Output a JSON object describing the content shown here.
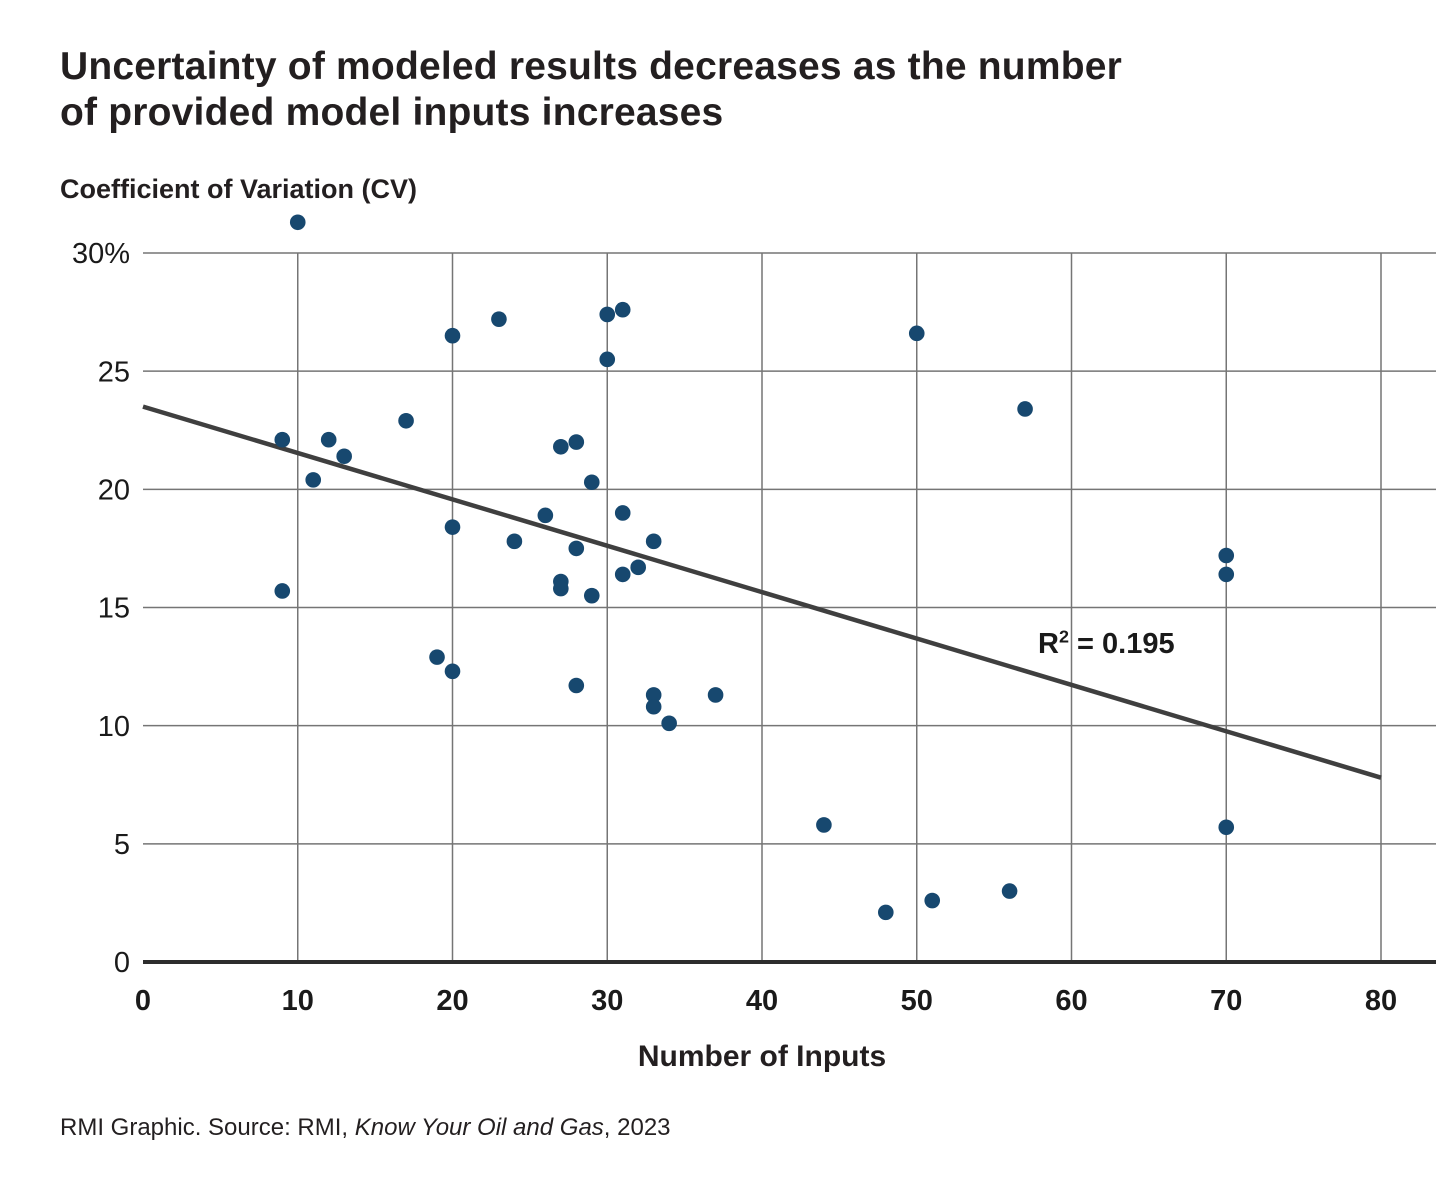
{
  "title": {
    "line1": "Uncertainty of modeled results decreases as the number",
    "line2": "of provided model inputs increases"
  },
  "y_axis_title": "Coefficient of Variation (CV)",
  "x_axis_title": "Number of Inputs",
  "annotation": {
    "base": "R",
    "superscript": "2",
    "rest": " = 0.195"
  },
  "source": {
    "prefix": "RMI Graphic. Source: RMI, ",
    "italic": "Know Your Oil and Gas",
    "suffix": ", 2023"
  },
  "colors": {
    "point": "#17486F",
    "trend_line": "#3F3F3F",
    "gridline": "#757575",
    "axis": "#2D2D2D",
    "tick_text": "#1a1a1a"
  },
  "chart_data": {
    "type": "scatter",
    "title": "Uncertainty of modeled results decreases as the number of provided model inputs increases",
    "xlabel": "Number of Inputs",
    "ylabel": "Coefficient of Variation (CV)",
    "xlim": [
      0,
      80
    ],
    "ylim": [
      0,
      30
    ],
    "grid": true,
    "x_ticks": [
      0,
      10,
      20,
      30,
      40,
      50,
      60,
      70,
      80
    ],
    "x_tick_labels": [
      "0",
      "10",
      "20",
      "30",
      "40",
      "50",
      "60",
      "70",
      "80"
    ],
    "y_ticks": [
      0,
      5,
      10,
      15,
      20,
      25,
      30
    ],
    "y_tick_labels": [
      "0",
      "5",
      "10",
      "15",
      "20",
      "25",
      "30%"
    ],
    "points": [
      [
        10,
        31.3
      ],
      [
        9,
        22.1
      ],
      [
        12,
        22.1
      ],
      [
        13,
        21.4
      ],
      [
        11,
        20.4
      ],
      [
        17,
        22.9
      ],
      [
        9,
        15.7
      ],
      [
        20,
        26.5
      ],
      [
        23,
        27.2
      ],
      [
        30,
        27.4
      ],
      [
        31,
        27.6
      ],
      [
        30,
        25.5
      ],
      [
        27,
        21.8
      ],
      [
        28,
        22.0
      ],
      [
        29,
        20.3
      ],
      [
        26,
        18.9
      ],
      [
        20,
        18.4
      ],
      [
        24,
        17.8
      ],
      [
        31,
        19.0
      ],
      [
        28,
        17.5
      ],
      [
        33,
        17.8
      ],
      [
        32,
        16.7
      ],
      [
        31,
        16.4
      ],
      [
        27,
        16.1
      ],
      [
        27,
        15.8
      ],
      [
        29,
        15.5
      ],
      [
        19,
        12.9
      ],
      [
        20,
        12.3
      ],
      [
        28,
        11.7
      ],
      [
        33,
        11.3
      ],
      [
        33,
        10.8
      ],
      [
        34,
        10.1
      ],
      [
        37,
        11.3
      ],
      [
        50,
        26.6
      ],
      [
        57,
        23.4
      ],
      [
        44,
        5.8
      ],
      [
        48,
        2.1
      ],
      [
        51,
        2.6
      ],
      [
        56,
        3.0
      ],
      [
        70,
        17.2
      ],
      [
        70,
        16.4
      ],
      [
        70,
        5.7
      ]
    ],
    "trend_line": {
      "x_start": 0,
      "y_start": 23.5,
      "x_end": 80,
      "y_end": 7.8,
      "r_squared": 0.195
    },
    "annotation": "R² = 0.195",
    "legend": "none"
  }
}
